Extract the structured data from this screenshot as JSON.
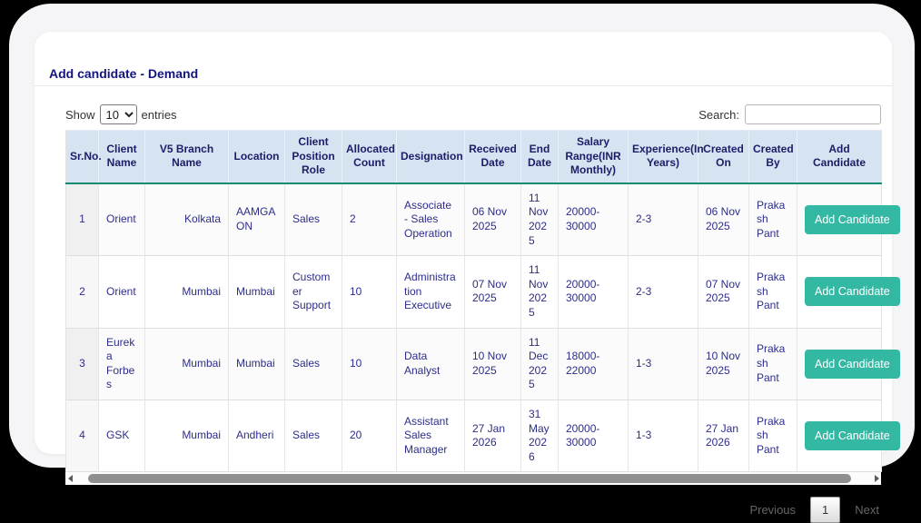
{
  "page": {
    "title": "Add candidate - Demand"
  },
  "controls": {
    "show_label": "Show",
    "entries_label": "entries",
    "entries_selected": "10",
    "search_label": "Search:",
    "search_value": ""
  },
  "table": {
    "columns": [
      "Sr.No.",
      "Client Name",
      "V5 Branch Name",
      "Location",
      "Client Position Role",
      "Allocated Count",
      "Designation",
      "Received Date",
      "End Date",
      "Salary Range(INR Monthly)",
      "Experience(In Years)",
      "Created On",
      "Created By",
      "Add Candidate"
    ],
    "row_action_label": "Add Candidate",
    "rows": [
      [
        "1",
        "Orient",
        "Kolkata",
        "AAMGAON",
        "Sales",
        "2",
        "Associate - Sales Operation",
        "06 Nov 2025",
        "11 Nov 2025",
        "20000-30000",
        "2-3",
        "06 Nov 2025",
        "Prakash Pant"
      ],
      [
        "2",
        "Orient",
        "Mumbai",
        "Mumbai",
        "Customer Support",
        "10",
        "Administration Executive",
        "07 Nov 2025",
        "11 Nov 2025",
        "20000-30000",
        "2-3",
        "07 Nov 2025",
        "Prakash Pant"
      ],
      [
        "3",
        "Eureka Forbes",
        "Mumbai",
        "Mumbai",
        "Sales",
        "10",
        "Data Analyst",
        "10 Nov 2025",
        "11 Dec 2025",
        "18000-22000",
        "1-3",
        "10 Nov 2025",
        "Prakash Pant"
      ],
      [
        "4",
        "GSK",
        "Mumbai",
        "Andheri",
        "Sales",
        "20",
        "Assistant Sales Manager",
        "27 Jan 2026",
        "31 May 2026",
        "20000-30000",
        "1-3",
        "27 Jan 2026",
        "Prakash Pant"
      ]
    ]
  },
  "pagination": {
    "previous_label": "Previous",
    "current_page": "1",
    "next_label": "Next"
  },
  "colors": {
    "accent_teal": "#33b8a3",
    "header_bg": "#d6e3f0",
    "header_border": "#148a71",
    "title_navy": "#14147e",
    "cell_navy": "#2d2d8a"
  }
}
